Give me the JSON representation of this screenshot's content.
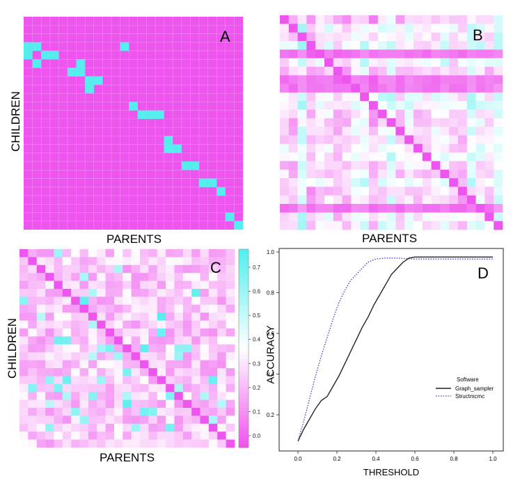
{
  "colors": {
    "low": "#ee55ee",
    "high": "#55eeee",
    "background": "#ffffff",
    "grid_line": "#f48cf4",
    "graph_sampler_line": "#222222",
    "structmcmc_line": "#3a3ad0"
  },
  "panels": {
    "A": {
      "letter": "A",
      "xlabel": "PARENTS",
      "ylabel": "CHILDREN",
      "n": 25,
      "description_level": "binary",
      "edges": [
        [
          3,
          0
        ],
        [
          4,
          0
        ],
        [
          3,
          1
        ],
        [
          5,
          1
        ],
        [
          4,
          2
        ],
        [
          4,
          3
        ],
        [
          6,
          5
        ],
        [
          5,
          6
        ],
        [
          6,
          6
        ],
        [
          7,
          7
        ],
        [
          8,
          7
        ],
        [
          7,
          8
        ],
        [
          3,
          11
        ],
        [
          10,
          12
        ],
        [
          11,
          13
        ],
        [
          11,
          14
        ],
        [
          11,
          15
        ],
        [
          14,
          16
        ],
        [
          15,
          16
        ],
        [
          15,
          17
        ],
        [
          17,
          18
        ],
        [
          17,
          19
        ],
        [
          19,
          20
        ],
        [
          19,
          21
        ],
        [
          20,
          22
        ],
        [
          23,
          23
        ],
        [
          24,
          24
        ]
      ]
    },
    "B": {
      "letter": "B",
      "xlabel": "PARENTS",
      "n": 25
    },
    "C": {
      "letter": "C",
      "xlabel": "PARENTS",
      "ylabel": "CHILDREN",
      "n": 25,
      "colorbar": {
        "label": "ACCURACY",
        "ticks": [
          "0.0",
          "0.1",
          "0.2",
          "0.3",
          "0.4",
          "0.5",
          "0.6",
          "0.7"
        ]
      }
    },
    "D": {
      "letter": "D"
    }
  },
  "chart_data": [
    {
      "type": "heatmap",
      "panel": "A",
      "title": "A",
      "xlabel": "PARENTS",
      "ylabel": "CHILDREN",
      "note": "Binary adjacency matrix (magenta = 0, cyan = 1)"
    },
    {
      "type": "heatmap",
      "panel": "B",
      "title": "B",
      "xlabel": "PARENTS",
      "ylabel": "",
      "note": "Continuous matrix, strong diagonal"
    },
    {
      "type": "heatmap",
      "panel": "C",
      "title": "C",
      "xlabel": "PARENTS",
      "ylabel": "CHILDREN",
      "colorbar_label": "ACCURACY",
      "colorbar_range": [
        0.0,
        0.75
      ]
    },
    {
      "type": "line",
      "panel": "D",
      "title": "D",
      "xlabel": "THRESHOLD",
      "ylabel": "",
      "xlim": [
        0.0,
        1.0
      ],
      "ylim": [
        0.05,
        1.0
      ],
      "xticks": [
        "0.0",
        "0.2",
        "0.4",
        "0.6",
        "0.8",
        "1.0"
      ],
      "yticks": [
        "0.2",
        "0.4",
        "0.6",
        "0.8",
        "1.0"
      ],
      "legend_title": "Software",
      "legend_position": "right",
      "series": [
        {
          "name": "Graph_sampler",
          "style": "solid",
          "x": [
            0.0,
            0.03,
            0.06,
            0.09,
            0.12,
            0.15,
            0.18,
            0.21,
            0.24,
            0.27,
            0.3,
            0.33,
            0.36,
            0.39,
            0.42,
            0.45,
            0.48,
            0.51,
            0.54,
            0.57,
            0.6,
            0.65,
            0.7,
            0.8,
            0.9,
            1.0
          ],
          "y": [
            0.07,
            0.13,
            0.18,
            0.23,
            0.27,
            0.29,
            0.34,
            0.39,
            0.45,
            0.51,
            0.57,
            0.63,
            0.68,
            0.74,
            0.79,
            0.84,
            0.89,
            0.92,
            0.95,
            0.97,
            0.975,
            0.975,
            0.975,
            0.975,
            0.975,
            0.975
          ]
        },
        {
          "name": "Structmcmc",
          "style": "dotted",
          "x": [
            0.0,
            0.03,
            0.06,
            0.09,
            0.12,
            0.15,
            0.18,
            0.21,
            0.24,
            0.27,
            0.3,
            0.33,
            0.36,
            0.4,
            0.45,
            0.5,
            0.6,
            0.7,
            0.8,
            0.9,
            1.0
          ],
          "y": [
            0.07,
            0.17,
            0.28,
            0.39,
            0.49,
            0.58,
            0.67,
            0.75,
            0.81,
            0.86,
            0.89,
            0.92,
            0.95,
            0.965,
            0.97,
            0.97,
            0.965,
            0.965,
            0.965,
            0.965,
            0.965
          ]
        }
      ]
    }
  ]
}
